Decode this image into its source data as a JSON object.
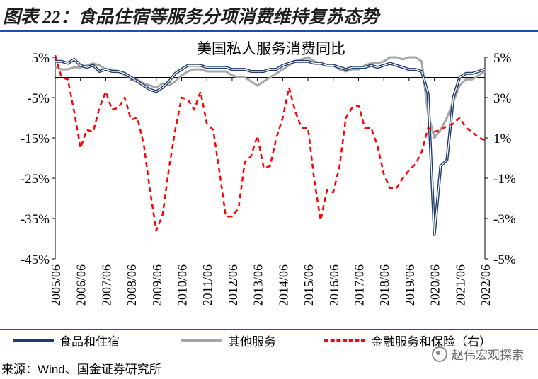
{
  "figure_title": "图表 22：食品住宿等服务分项消费维持复苏态势",
  "source": "来源：Wind、国金证券研究所",
  "watermark": "赵伟宏观探索",
  "colors": {
    "food": "#1f3d6e",
    "other": "#a6a6a6",
    "finance": "#ff0000",
    "rule": "#1f4e9c"
  },
  "chart_data": {
    "type": "line",
    "title": "美国私人服务消费同比",
    "x": [
      "2005/06",
      "2005/09",
      "2005/12",
      "2006/03",
      "2006/06",
      "2006/09",
      "2006/12",
      "2007/03",
      "2007/06",
      "2007/09",
      "2007/12",
      "2008/03",
      "2008/06",
      "2008/09",
      "2008/12",
      "2009/03",
      "2009/06",
      "2009/09",
      "2009/12",
      "2010/03",
      "2010/06",
      "2010/09",
      "2010/12",
      "2011/03",
      "2011/06",
      "2011/09",
      "2011/12",
      "2012/03",
      "2012/06",
      "2012/09",
      "2012/12",
      "2013/03",
      "2013/06",
      "2013/09",
      "2013/12",
      "2014/03",
      "2014/06",
      "2014/09",
      "2014/12",
      "2015/03",
      "2015/06",
      "2015/09",
      "2015/12",
      "2016/03",
      "2016/06",
      "2016/09",
      "2016/12",
      "2017/03",
      "2017/06",
      "2017/09",
      "2017/12",
      "2018/03",
      "2018/06",
      "2018/09",
      "2018/12",
      "2019/03",
      "2019/06",
      "2019/09",
      "2019/12",
      "2020/03",
      "2020/06",
      "2020/09",
      "2020/12",
      "2021/03",
      "2021/06",
      "2021/09",
      "2021/12",
      "2022/03",
      "2022/06"
    ],
    "x_tick_labels": [
      "2005/06",
      "2006/06",
      "2007/06",
      "2008/06",
      "2009/06",
      "2010/06",
      "2011/06",
      "2012/06",
      "2013/06",
      "2014/06",
      "2015/06",
      "2016/06",
      "2017/06",
      "2018/06",
      "2019/06",
      "2020/06",
      "2021/06",
      "2022/06"
    ],
    "yticks_left": [
      "5%",
      "-5%",
      "-15%",
      "-25%",
      "-35%",
      "-45%"
    ],
    "yticks_right": [
      "5%",
      "3%",
      "1%",
      "-1%",
      "-3%",
      "-5%"
    ],
    "ylim_left": [
      -45,
      5
    ],
    "ylim_right": [
      -5,
      5
    ],
    "series": [
      {
        "name": "食品和住宿",
        "axis": "left",
        "style": "solid",
        "values": [
          4,
          4,
          3.5,
          4.5,
          3,
          2.5,
          3,
          1.5,
          2,
          1.5,
          1.5,
          1,
          0,
          -1,
          -2,
          -3,
          -3.5,
          -2.5,
          -1,
          1,
          2,
          3,
          3,
          3,
          2.5,
          2.5,
          2.5,
          2.5,
          2,
          2,
          2,
          1.5,
          1.5,
          1.5,
          2,
          2,
          3,
          3.5,
          4,
          4,
          4,
          3.5,
          3.5,
          3,
          3,
          2.5,
          2,
          2.5,
          2.5,
          2.5,
          3,
          2.5,
          3,
          3.5,
          3,
          2.5,
          2,
          2,
          1.5,
          -4,
          -39,
          -22,
          -20.5,
          -5,
          0,
          1,
          1,
          1.5,
          2
        ]
      },
      {
        "name": "其他服务",
        "axis": "left",
        "style": "solid",
        "values": [
          2.5,
          2,
          2,
          2.5,
          2.5,
          3,
          3.5,
          3,
          2,
          2,
          1.5,
          0.5,
          0,
          -0.5,
          -1.5,
          -2,
          -2.5,
          -1.5,
          -2,
          -1,
          0.5,
          1.5,
          2,
          2,
          1.5,
          1.5,
          1.5,
          1.5,
          0.5,
          0,
          0,
          -1,
          -2,
          -1,
          0,
          1,
          2,
          3,
          4,
          4.5,
          5,
          4,
          3.5,
          3,
          3,
          2,
          1.5,
          2,
          2,
          3,
          3.5,
          3.5,
          4,
          5,
          5,
          4.5,
          5,
          5,
          4,
          -9,
          -15,
          -13,
          -10,
          -6,
          -2,
          -0.5,
          -0.5,
          0.5,
          1.5
        ]
      },
      {
        "name": "金融服务和保险（右）",
        "axis": "right",
        "style": "dashed",
        "values": [
          5.1,
          4.0,
          3.9,
          2.3,
          0.5,
          1.4,
          1.3,
          2.5,
          3.3,
          2.4,
          2.5,
          3.0,
          1.9,
          2.0,
          0.7,
          -1.6,
          -3.6,
          -2.8,
          -0.5,
          1.4,
          3.0,
          2.9,
          2.4,
          3.3,
          1.7,
          1.4,
          -0.7,
          -2.9,
          -2.9,
          -2.5,
          -0.2,
          0.1,
          1.1,
          -0.5,
          -0.4,
          1.0,
          2.0,
          3.5,
          2.3,
          1.5,
          1.5,
          -1.1,
          -3.1,
          -1.6,
          -1.7,
          -0.4,
          2.0,
          2.5,
          2.6,
          1.5,
          1.5,
          0.6,
          -0.8,
          -1.5,
          -1.5,
          -1.0,
          -0.6,
          -0.3,
          0.3,
          1.5,
          1.3,
          1.4,
          1.6,
          1.7,
          2.0,
          1.5,
          1.3,
          1.0,
          0.9
        ]
      }
    ]
  }
}
